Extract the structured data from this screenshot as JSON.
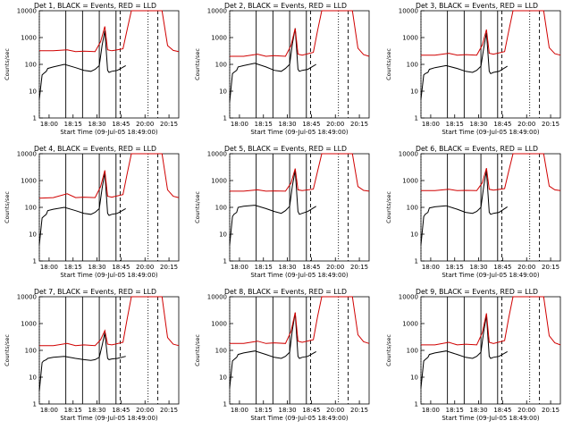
{
  "chart_data": [
    {
      "type": "line",
      "title": "Det 1, BLACK = Events, RED = LLD",
      "xlabel": "Start Time (09-Jul-05 18:49:00)",
      "ylabel": "Counts/sec",
      "xticks": [
        "18:00",
        "18:15",
        "18:30",
        "18:45",
        "20:00",
        "20:15"
      ],
      "yticks": [
        "1",
        "10",
        "100",
        "1000",
        "10000"
      ],
      "ylim": [
        1,
        10000
      ],
      "yscale": "log",
      "series": [
        {
          "name": "BLACK",
          "color": "#000000",
          "x": [
            0.0,
            0.02,
            0.03,
            0.05,
            0.06,
            0.1,
            0.18,
            0.26,
            0.32,
            0.37,
            0.4,
            0.43,
            0.45,
            0.47,
            0.49,
            0.5,
            0.52,
            0.56,
            0.62
          ],
          "y": [
            5,
            40,
            45,
            55,
            70,
            80,
            100,
            75,
            60,
            55,
            65,
            90,
            500,
            1800,
            60,
            50,
            55,
            60,
            90
          ]
        },
        {
          "name": "RED",
          "color": "#d00000",
          "x": [
            0.0,
            0.1,
            0.2,
            0.26,
            0.32,
            0.4,
            0.44,
            0.47,
            0.49,
            0.52,
            0.6,
            0.63,
            0.66,
            0.88,
            0.92,
            0.96,
            1.0
          ],
          "y": [
            320,
            320,
            350,
            300,
            310,
            300,
            700,
            2600,
            350,
            320,
            380,
            2000,
            10000,
            10000,
            500,
            330,
            300
          ]
        }
      ]
    },
    {
      "type": "line",
      "title": "Det 2, BLACK = Events, RED = LLD",
      "xlabel": "Start Time (09-Jul-05 18:49:00)",
      "ylabel": "Counts/sec",
      "xticks": [
        "18:00",
        "18:15",
        "18:30",
        "18:45",
        "20:00",
        "20:15"
      ],
      "yticks": [
        "1",
        "10",
        "100",
        "1000",
        "10000"
      ],
      "ylim": [
        1,
        10000
      ],
      "yscale": "log",
      "series": [
        {
          "name": "BLACK",
          "color": "#000000",
          "x": [
            0.0,
            0.02,
            0.03,
            0.05,
            0.06,
            0.1,
            0.18,
            0.26,
            0.32,
            0.37,
            0.4,
            0.43,
            0.45,
            0.47,
            0.49,
            0.5,
            0.52,
            0.56,
            0.62
          ],
          "y": [
            4,
            45,
            50,
            60,
            80,
            90,
            110,
            80,
            60,
            55,
            70,
            100,
            600,
            2200,
            65,
            55,
            60,
            65,
            100
          ]
        },
        {
          "name": "RED",
          "color": "#d00000",
          "x": [
            0.0,
            0.1,
            0.2,
            0.26,
            0.32,
            0.4,
            0.44,
            0.47,
            0.49,
            0.52,
            0.6,
            0.63,
            0.66,
            0.88,
            0.92,
            0.96,
            1.0
          ],
          "y": [
            200,
            200,
            240,
            200,
            210,
            200,
            500,
            2200,
            240,
            220,
            280,
            1800,
            10000,
            10000,
            400,
            230,
            200
          ]
        }
      ]
    },
    {
      "type": "line",
      "title": "Det 3, BLACK = Events, RED = LLD",
      "xlabel": "Start Time (09-Jul-05 18:49:00)",
      "ylabel": "Counts/sec",
      "xticks": [
        "18:00",
        "18:15",
        "18:30",
        "18:45",
        "20:00",
        "20:15"
      ],
      "yticks": [
        "1",
        "10",
        "100",
        "1000",
        "10000"
      ],
      "ylim": [
        1,
        10000
      ],
      "yscale": "log",
      "series": [
        {
          "name": "BLACK",
          "color": "#000000",
          "x": [
            0.0,
            0.02,
            0.03,
            0.05,
            0.06,
            0.1,
            0.18,
            0.26,
            0.32,
            0.37,
            0.4,
            0.43,
            0.45,
            0.47,
            0.49,
            0.5,
            0.52,
            0.56,
            0.62
          ],
          "y": [
            5,
            40,
            45,
            50,
            65,
            75,
            90,
            70,
            55,
            50,
            60,
            85,
            400,
            1500,
            55,
            45,
            50,
            55,
            85
          ]
        },
        {
          "name": "RED",
          "color": "#d00000",
          "x": [
            0.0,
            0.1,
            0.2,
            0.26,
            0.32,
            0.4,
            0.44,
            0.47,
            0.49,
            0.52,
            0.6,
            0.63,
            0.66,
            0.88,
            0.92,
            0.96,
            1.0
          ],
          "y": [
            220,
            220,
            260,
            220,
            230,
            220,
            520,
            2000,
            260,
            240,
            300,
            1800,
            10000,
            10000,
            420,
            250,
            220
          ]
        }
      ]
    },
    {
      "type": "line",
      "title": "Det 4, BLACK = Events, RED = LLD",
      "xlabel": "Start Time (09-Jul-05 18:49:00)",
      "ylabel": "Counts/sec",
      "xticks": [
        "18:00",
        "18:15",
        "18:30",
        "18:45",
        "20:00",
        "20:15"
      ],
      "yticks": [
        "1",
        "10",
        "100",
        "1000",
        "10000"
      ],
      "ylim": [
        1,
        10000
      ],
      "yscale": "log",
      "series": [
        {
          "name": "BLACK",
          "color": "#000000",
          "x": [
            0.0,
            0.02,
            0.03,
            0.05,
            0.06,
            0.1,
            0.18,
            0.26,
            0.32,
            0.37,
            0.4,
            0.43,
            0.45,
            0.47,
            0.49,
            0.5,
            0.52,
            0.56,
            0.62
          ],
          "y": [
            4,
            40,
            45,
            55,
            75,
            85,
            100,
            75,
            60,
            55,
            65,
            90,
            500,
            2000,
            60,
            50,
            55,
            60,
            90
          ]
        },
        {
          "name": "RED",
          "color": "#d00000",
          "x": [
            0.0,
            0.1,
            0.2,
            0.26,
            0.32,
            0.4,
            0.44,
            0.47,
            0.49,
            0.52,
            0.6,
            0.63,
            0.66,
            0.88,
            0.92,
            0.96,
            1.0
          ],
          "y": [
            220,
            230,
            320,
            230,
            240,
            230,
            600,
            2400,
            260,
            240,
            300,
            1800,
            10000,
            10000,
            450,
            260,
            230
          ]
        }
      ]
    },
    {
      "type": "line",
      "title": "Det 5, BLACK = Events, RED = LLD",
      "xlabel": "Start Time (09-Jul-05 18:49:00)",
      "ylabel": "Counts/sec",
      "xticks": [
        "18:00",
        "18:15",
        "18:30",
        "18:45",
        "20:00",
        "20:15"
      ],
      "yticks": [
        "1",
        "10",
        "100",
        "1000",
        "10000"
      ],
      "ylim": [
        1,
        10000
      ],
      "yscale": "log",
      "series": [
        {
          "name": "BLACK",
          "color": "#000000",
          "x": [
            0.0,
            0.02,
            0.03,
            0.05,
            0.06,
            0.1,
            0.18,
            0.26,
            0.32,
            0.37,
            0.4,
            0.43,
            0.45,
            0.47,
            0.49,
            0.5,
            0.52,
            0.56,
            0.62
          ],
          "y": [
            4,
            45,
            55,
            65,
            100,
            110,
            120,
            90,
            70,
            60,
            75,
            110,
            650,
            2400,
            70,
            55,
            60,
            70,
            110
          ]
        },
        {
          "name": "RED",
          "color": "#d00000",
          "x": [
            0.0,
            0.1,
            0.2,
            0.26,
            0.32,
            0.4,
            0.44,
            0.47,
            0.49,
            0.52,
            0.6,
            0.63,
            0.66,
            0.88,
            0.92,
            0.96,
            1.0
          ],
          "y": [
            400,
            400,
            450,
            400,
            410,
            400,
            800,
            2800,
            450,
            420,
            480,
            2200,
            10000,
            10000,
            600,
            430,
            400
          ]
        }
      ]
    },
    {
      "type": "line",
      "title": "Det 6, BLACK = Events, RED = LLD",
      "xlabel": "Start Time (09-Jul-05 18:49:00)",
      "ylabel": "Counts/sec",
      "xticks": [
        "18:00",
        "18:15",
        "18:30",
        "18:45",
        "20:00",
        "20:15"
      ],
      "yticks": [
        "1",
        "10",
        "100",
        "1000",
        "10000"
      ],
      "ylim": [
        1,
        10000
      ],
      "yscale": "log",
      "series": [
        {
          "name": "BLACK",
          "color": "#000000",
          "x": [
            0.0,
            0.02,
            0.03,
            0.05,
            0.06,
            0.1,
            0.18,
            0.26,
            0.32,
            0.37,
            0.4,
            0.43,
            0.45,
            0.47,
            0.49,
            0.5,
            0.52,
            0.56,
            0.62
          ],
          "y": [
            4,
            45,
            55,
            65,
            95,
            105,
            115,
            85,
            65,
            60,
            70,
            100,
            600,
            2300,
            65,
            55,
            60,
            65,
            105
          ]
        },
        {
          "name": "RED",
          "color": "#d00000",
          "x": [
            0.0,
            0.1,
            0.2,
            0.26,
            0.32,
            0.4,
            0.44,
            0.47,
            0.49,
            0.52,
            0.6,
            0.63,
            0.66,
            0.88,
            0.92,
            0.96,
            1.0
          ],
          "y": [
            420,
            420,
            470,
            420,
            430,
            420,
            820,
            2900,
            470,
            440,
            500,
            2300,
            10000,
            10000,
            620,
            450,
            420
          ]
        }
      ]
    },
    {
      "type": "line",
      "title": "Det 7, BLACK = Events, RED = LLD",
      "xlabel": "Start Time (09-Jul-05 18:49:00)",
      "ylabel": "Counts/sec",
      "xticks": [
        "18:00",
        "18:15",
        "18:30",
        "18:45",
        "20:00",
        "20:15"
      ],
      "yticks": [
        "1",
        "10",
        "100",
        "1000",
        "10000"
      ],
      "ylim": [
        1,
        10000
      ],
      "yscale": "log",
      "series": [
        {
          "name": "BLACK",
          "color": "#000000",
          "x": [
            0.0,
            0.02,
            0.03,
            0.05,
            0.06,
            0.1,
            0.18,
            0.26,
            0.32,
            0.37,
            0.4,
            0.43,
            0.45,
            0.47,
            0.49,
            0.5,
            0.52,
            0.56,
            0.62
          ],
          "y": [
            3,
            35,
            40,
            45,
            50,
            55,
            60,
            50,
            45,
            42,
            45,
            55,
            150,
            450,
            50,
            45,
            48,
            50,
            60
          ]
        },
        {
          "name": "RED",
          "color": "#d00000",
          "x": [
            0.0,
            0.1,
            0.2,
            0.26,
            0.32,
            0.4,
            0.44,
            0.47,
            0.49,
            0.52,
            0.6,
            0.63,
            0.66,
            0.88,
            0.92,
            0.96,
            1.0
          ],
          "y": [
            150,
            150,
            180,
            150,
            160,
            150,
            250,
            550,
            170,
            160,
            200,
            1500,
            10000,
            10000,
            300,
            170,
            150
          ]
        }
      ]
    },
    {
      "type": "line",
      "title": "Det 8, BLACK = Events, RED = LLD",
      "xlabel": "Start Time (09-Jul-05 18:49:00)",
      "ylabel": "Counts/sec",
      "xticks": [
        "18:00",
        "18:15",
        "18:30",
        "18:45",
        "20:00",
        "20:15"
      ],
      "yticks": [
        "1",
        "10",
        "100",
        "1000",
        "10000"
      ],
      "ylim": [
        1,
        10000
      ],
      "yscale": "log",
      "series": [
        {
          "name": "BLACK",
          "color": "#000000",
          "x": [
            0.0,
            0.02,
            0.03,
            0.05,
            0.06,
            0.1,
            0.18,
            0.26,
            0.32,
            0.37,
            0.4,
            0.43,
            0.45,
            0.47,
            0.49,
            0.5,
            0.52,
            0.56,
            0.62
          ],
          "y": [
            4,
            40,
            45,
            55,
            70,
            80,
            95,
            70,
            55,
            50,
            60,
            85,
            600,
            2500,
            60,
            50,
            55,
            60,
            90
          ]
        },
        {
          "name": "RED",
          "color": "#d00000",
          "x": [
            0.0,
            0.1,
            0.2,
            0.26,
            0.32,
            0.4,
            0.44,
            0.47,
            0.49,
            0.52,
            0.6,
            0.63,
            0.66,
            0.88,
            0.92,
            0.96,
            1.0
          ],
          "y": [
            180,
            180,
            220,
            180,
            190,
            180,
            500,
            2600,
            220,
            200,
            250,
            1800,
            10000,
            10000,
            380,
            210,
            180
          ]
        }
      ]
    },
    {
      "type": "line",
      "title": "Det 9, BLACK = Events, RED = LLD",
      "xlabel": "Start Time (09-Jul-05 18:49:00)",
      "ylabel": "Counts/sec",
      "xticks": [
        "18:00",
        "18:15",
        "18:30",
        "18:45",
        "20:00",
        "20:15"
      ],
      "yticks": [
        "1",
        "10",
        "100",
        "1000",
        "10000"
      ],
      "ylim": [
        1,
        10000
      ],
      "yscale": "log",
      "series": [
        {
          "name": "BLACK",
          "color": "#000000",
          "x": [
            0.0,
            0.02,
            0.03,
            0.05,
            0.06,
            0.1,
            0.18,
            0.26,
            0.32,
            0.37,
            0.4,
            0.43,
            0.45,
            0.47,
            0.49,
            0.5,
            0.52,
            0.56,
            0.62
          ],
          "y": [
            4,
            40,
            45,
            55,
            70,
            80,
            95,
            70,
            55,
            50,
            60,
            85,
            500,
            2000,
            60,
            50,
            55,
            60,
            90
          ]
        },
        {
          "name": "RED",
          "color": "#d00000",
          "x": [
            0.0,
            0.1,
            0.2,
            0.26,
            0.32,
            0.4,
            0.44,
            0.47,
            0.49,
            0.52,
            0.6,
            0.63,
            0.66,
            0.88,
            0.92,
            0.96,
            1.0
          ],
          "y": [
            160,
            160,
            200,
            160,
            170,
            160,
            450,
            2400,
            200,
            180,
            230,
            1700,
            10000,
            10000,
            350,
            190,
            160
          ]
        }
      ]
    }
  ]
}
